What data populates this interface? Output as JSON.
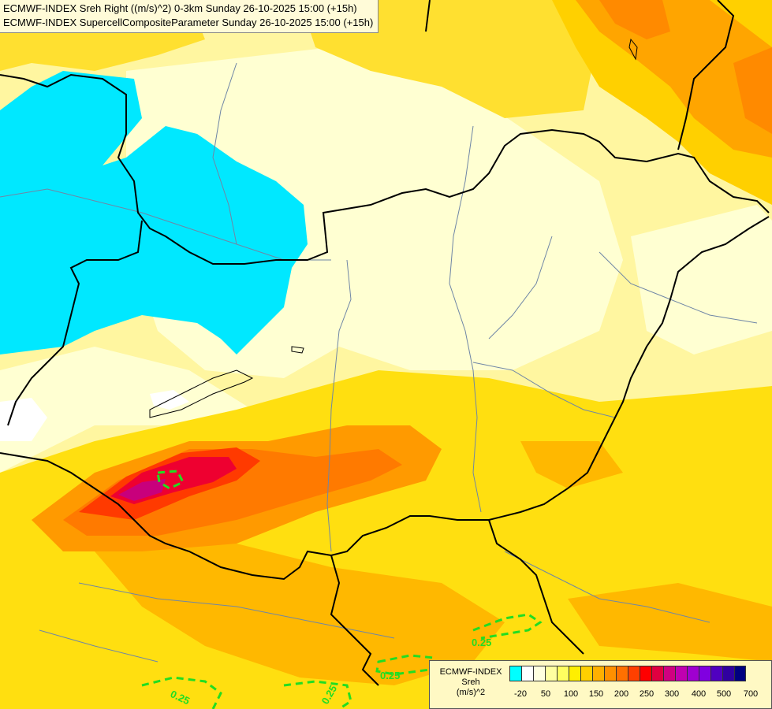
{
  "title": {
    "line1": "ECMWF-INDEX Sreh Right ((m/s)^2) 0-3km Sunday 26-10-2025 15:00 (+15h)",
    "line2": "ECMWF-INDEX SupercellCompositeParameter Sunday 26-10-2025 15:00 (+15h)"
  },
  "legend": {
    "line1": "ECMWF-INDEX",
    "line2": "Sreh",
    "line3": "(m/s)^2",
    "colors": [
      "#00ffff",
      "#ffffff",
      "#ffffe0",
      "#ffffa0",
      "#ffff60",
      "#ffef00",
      "#ffd000",
      "#ffb000",
      "#ff9000",
      "#ff7000",
      "#ff4000",
      "#ff0000",
      "#e00040",
      "#d00080",
      "#c000b0",
      "#a000d0",
      "#8000e0",
      "#5000c0",
      "#3000a0",
      "#000080"
    ],
    "ticks": [
      "-20",
      "50",
      "100",
      "150",
      "200",
      "250",
      "300",
      "400",
      "500",
      "700"
    ]
  },
  "contours": {
    "label": "0.25",
    "color": "#22dd22"
  }
}
